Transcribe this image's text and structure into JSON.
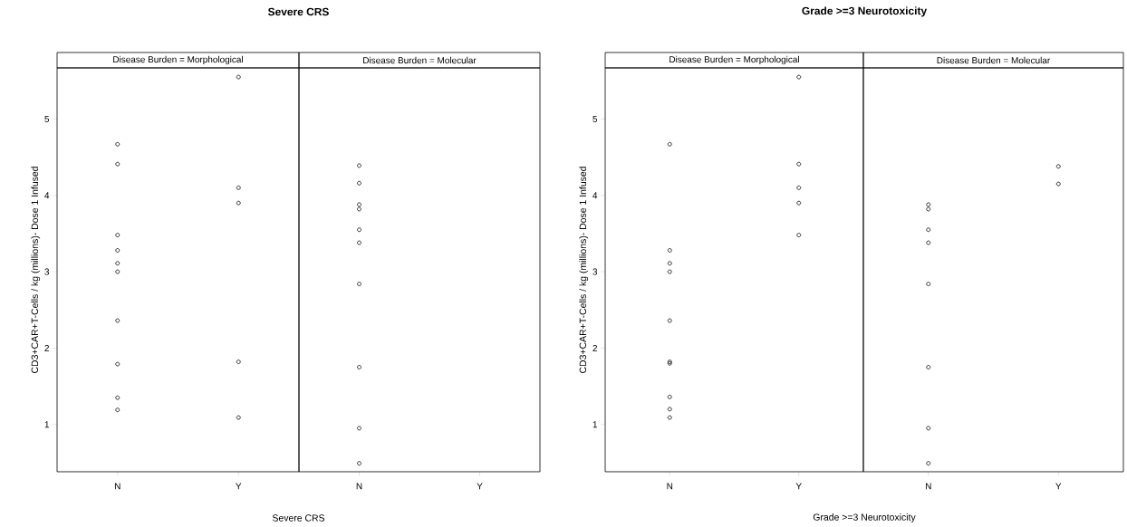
{
  "chart_data": [
    {
      "type": "scatter",
      "title": "Severe CRS",
      "subtitle": "Disease Burden = Morphological",
      "xlabel": "Severe CRS",
      "ylabel": "CD3+CAR+T-Cells / kg (millions)- Dose 1 Infused",
      "categories": [
        "N",
        "Y"
      ],
      "marker": "circle",
      "ylim": [
        0.38,
        5.67
      ],
      "yticks": [
        1,
        2,
        3,
        4,
        5
      ],
      "series": [
        {
          "color": "#000000",
          "x": [
            "N",
            "N",
            "N",
            "N",
            "N",
            "N",
            "N",
            "N",
            "N",
            "N",
            "Y",
            "Y",
            "Y",
            "Y",
            "Y"
          ],
          "values": [
            4.67,
            4.41,
            3.48,
            3.28,
            3.11,
            3.0,
            2.36,
            1.79,
            1.35,
            1.19,
            5.55,
            4.1,
            3.9,
            1.82,
            1.09
          ]
        }
      ]
    },
    {
      "type": "scatter",
      "subtitle": "Disease Burden = Molecular",
      "categories": [
        "N",
        "Y"
      ],
      "marker": "circle",
      "ylim": [
        0.38,
        5.67
      ],
      "yticks": [
        1,
        2,
        3,
        4,
        5
      ],
      "tick_labels": "x",
      "series": [
        {
          "color": "#000000",
          "x": [
            "N",
            "N",
            "N",
            "N",
            "N",
            "N",
            "N",
            "N",
            "N",
            "N"
          ],
          "values": [
            4.39,
            4.16,
            3.88,
            3.82,
            3.55,
            3.38,
            2.84,
            1.75,
            0.95,
            0.49
          ]
        }
      ]
    },
    {
      "type": "scatter",
      "title": "Grade >=3 Neurotoxicity",
      "subtitle": "Disease Burden = Morphological",
      "xlabel": "Grade >=3 Neurotoxicity",
      "ylabel": "CD3+CAR+T-Cells / kg (millions)- Dose 1 Infused",
      "categories": [
        "N",
        "Y"
      ],
      "marker": "circle",
      "ylim": [
        0.38,
        5.67
      ],
      "yticks": [
        1,
        2,
        3,
        4,
        5
      ],
      "series": [
        {
          "color": "#000000",
          "x": [
            "N",
            "N",
            "N",
            "N",
            "N",
            "N",
            "N",
            "N",
            "N",
            "N",
            "Y",
            "Y",
            "Y",
            "Y",
            "Y"
          ],
          "values": [
            4.67,
            3.28,
            3.11,
            3.0,
            2.36,
            1.82,
            1.8,
            1.36,
            1.2,
            1.09,
            5.55,
            4.41,
            4.1,
            3.9,
            3.48
          ]
        }
      ]
    },
    {
      "type": "scatter",
      "subtitle": "Disease Burden = Molecular",
      "categories": [
        "N",
        "Y"
      ],
      "marker": "circle",
      "ylim": [
        0.38,
        5.67
      ],
      "yticks": [
        1,
        2,
        3,
        4,
        5
      ],
      "tick_labels": "x",
      "series": [
        {
          "color": "#000000",
          "x": [
            "N",
            "N",
            "N",
            "N",
            "N",
            "N",
            "N",
            "N",
            "Y",
            "Y"
          ],
          "values": [
            3.88,
            3.82,
            3.55,
            3.38,
            2.84,
            1.75,
            0.95,
            0.49,
            4.38,
            4.15
          ]
        }
      ]
    }
  ]
}
